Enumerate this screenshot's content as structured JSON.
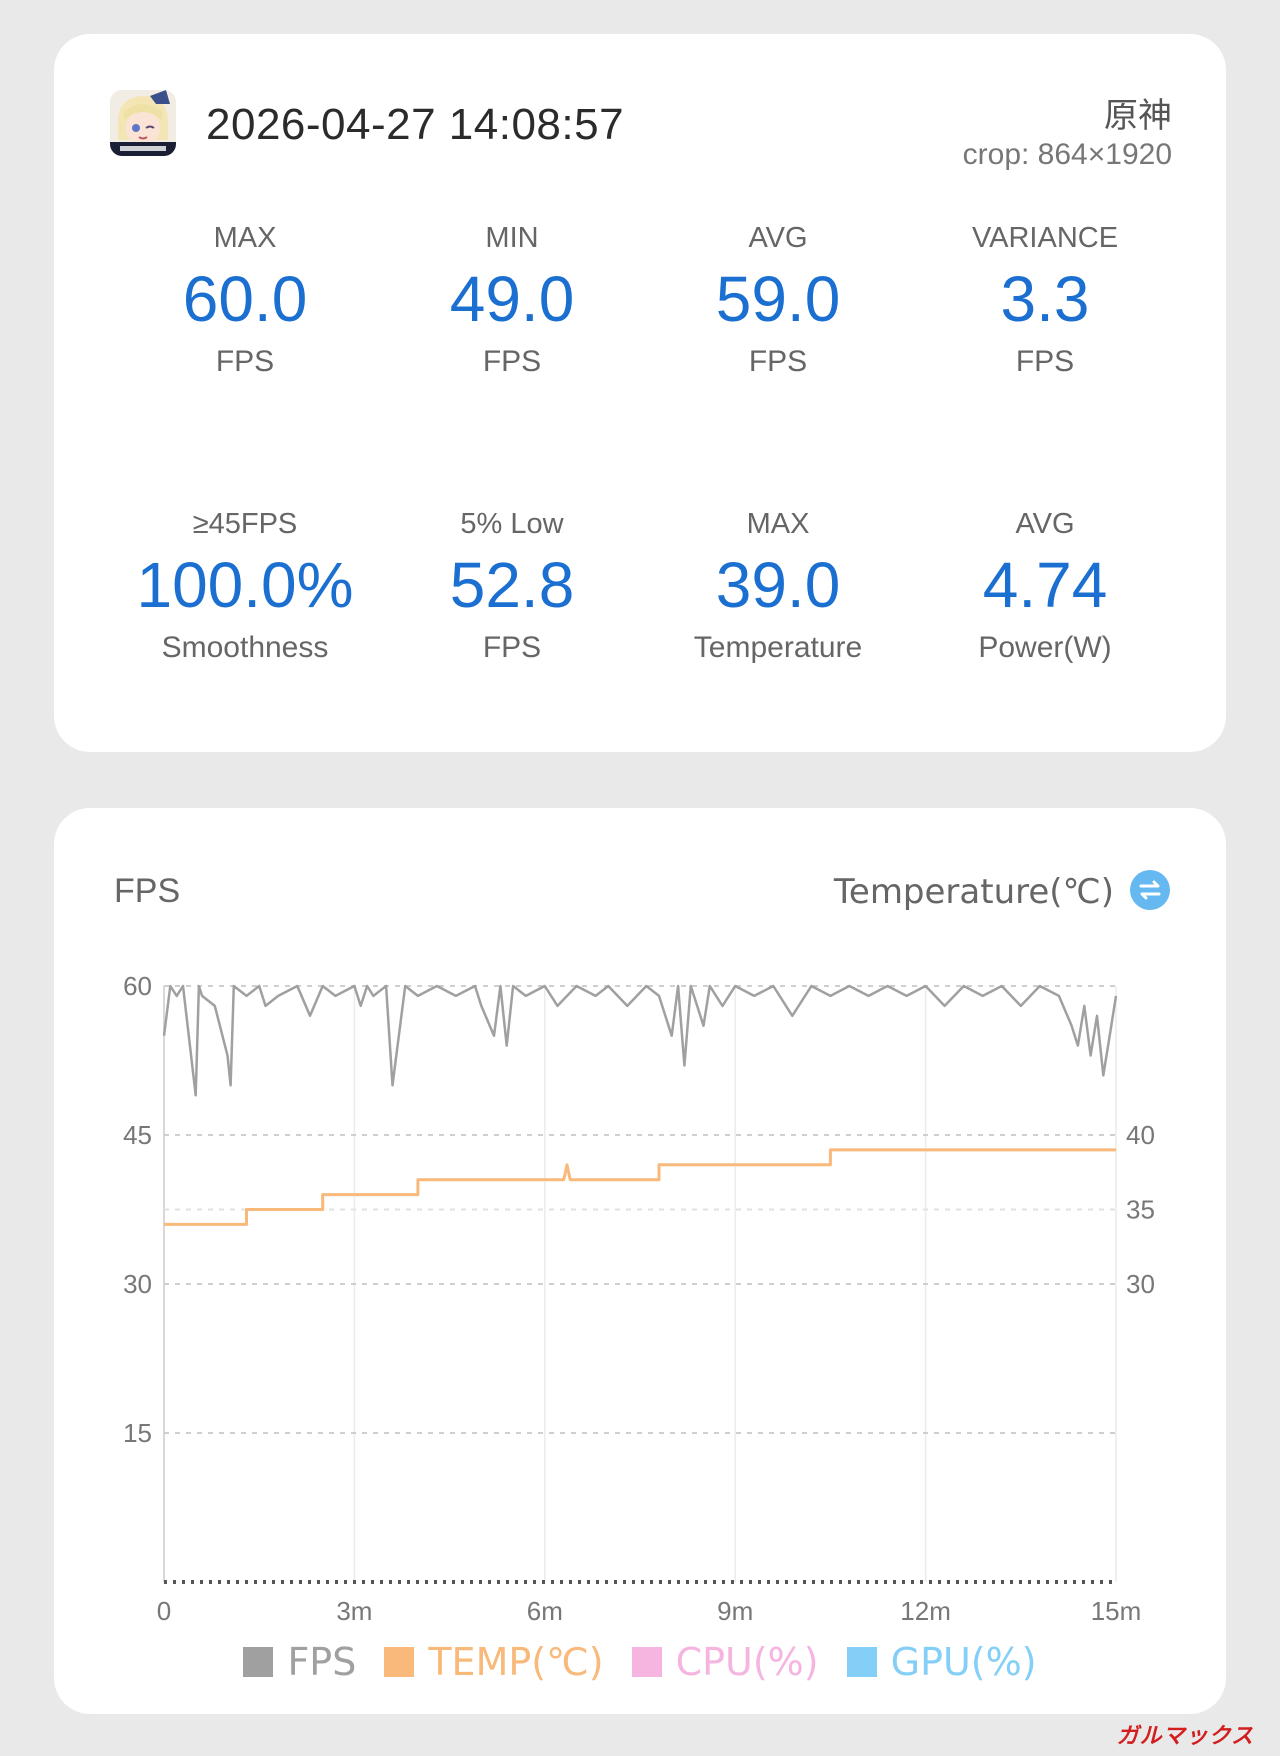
{
  "header": {
    "timestamp": "2026-04-27 14:08:57",
    "game_title": "原神",
    "crop": "crop: 864×1920",
    "icon": "game-avatar-icon"
  },
  "stats": [
    {
      "label": "MAX",
      "value": "60.0",
      "unit": "FPS"
    },
    {
      "label": "MIN",
      "value": "49.0",
      "unit": "FPS"
    },
    {
      "label": "AVG",
      "value": "59.0",
      "unit": "FPS"
    },
    {
      "label": "VARIANCE",
      "value": "3.3",
      "unit": "FPS"
    },
    {
      "label": "≥45FPS",
      "value": "100.0%",
      "unit": "Smoothness"
    },
    {
      "label": "5% Low",
      "value": "52.8",
      "unit": "FPS"
    },
    {
      "label": "MAX",
      "value": "39.0",
      "unit": "Temperature"
    },
    {
      "label": "AVG",
      "value": "4.74",
      "unit": "Power(W)"
    }
  ],
  "colors": {
    "accent": "#1b6fd0",
    "fps": "#a0a0a0",
    "temp": "#f8b97a",
    "cpu": "#f6b5e0",
    "gpu": "#83cff7"
  },
  "chart": {
    "left_label": "FPS",
    "right_label": "Temperature(℃)",
    "swap_icon": "swap-icon"
  },
  "legend": [
    {
      "label": "FPS",
      "color": "#a0a0a0"
    },
    {
      "label": "TEMP(℃)",
      "color": "#f8b97a"
    },
    {
      "label": "CPU(%)",
      "color": "#f6b5e0"
    },
    {
      "label": "GPU(%)",
      "color": "#83cff7"
    }
  ],
  "watermark": "ガルマックス",
  "chart_data": {
    "type": "line",
    "x_ticks": [
      "0",
      "3m",
      "6m",
      "9m",
      "12m",
      "15m"
    ],
    "xlim": [
      0,
      15
    ],
    "y_left": {
      "ticks": [
        "60",
        "45",
        "30",
        "15"
      ],
      "ylim": [
        0,
        60
      ]
    },
    "y_right": {
      "ticks": [
        "40",
        "35",
        "30"
      ]
    },
    "grid": true,
    "series": [
      {
        "name": "FPS",
        "axis": "left",
        "x": [
          0,
          0.1,
          0.2,
          0.3,
          0.5,
          0.55,
          0.6,
          0.8,
          1.0,
          1.05,
          1.1,
          1.3,
          1.5,
          1.6,
          1.8,
          2.1,
          2.3,
          2.5,
          2.7,
          3.0,
          3.1,
          3.2,
          3.3,
          3.5,
          3.6,
          3.8,
          4.0,
          4.3,
          4.6,
          4.9,
          5.0,
          5.2,
          5.3,
          5.4,
          5.5,
          5.7,
          6.0,
          6.2,
          6.5,
          6.8,
          7.0,
          7.3,
          7.6,
          7.8,
          8.0,
          8.1,
          8.2,
          8.3,
          8.5,
          8.6,
          8.8,
          9.0,
          9.3,
          9.6,
          9.9,
          10.2,
          10.5,
          10.8,
          11.1,
          11.4,
          11.7,
          12.0,
          12.3,
          12.6,
          12.9,
          13.2,
          13.5,
          13.8,
          14.1,
          14.3,
          14.4,
          14.5,
          14.6,
          14.7,
          14.8,
          14.9,
          15.0
        ],
        "y": [
          55,
          60,
          59,
          60,
          49,
          60,
          59,
          58,
          53,
          50,
          60,
          59,
          60,
          58,
          59,
          60,
          57,
          60,
          59,
          60,
          58,
          60,
          59,
          60,
          50,
          60,
          59,
          60,
          59,
          60,
          58,
          55,
          60,
          54,
          60,
          59,
          60,
          58,
          60,
          59,
          60,
          58,
          60,
          59,
          55,
          60,
          52,
          60,
          56,
          60,
          58,
          60,
          59,
          60,
          57,
          60,
          59,
          60,
          59,
          60,
          59,
          60,
          58,
          60,
          59,
          60,
          58,
          60,
          59,
          56,
          54,
          58,
          53,
          57,
          51,
          55,
          59
        ]
      },
      {
        "name": "TEMP(℃)",
        "axis": "right",
        "x": [
          0,
          1.3,
          1.3,
          2.5,
          2.5,
          4.0,
          4.0,
          6.3,
          6.35,
          6.4,
          6.5,
          7.8,
          7.8,
          10.5,
          10.5,
          15.0
        ],
        "y": [
          34.0,
          34.0,
          35.0,
          35.0,
          36.0,
          36.0,
          37.0,
          37.0,
          38.0,
          37.0,
          37.0,
          37.0,
          38.0,
          38.0,
          39.0,
          39.0
        ]
      }
    ]
  }
}
